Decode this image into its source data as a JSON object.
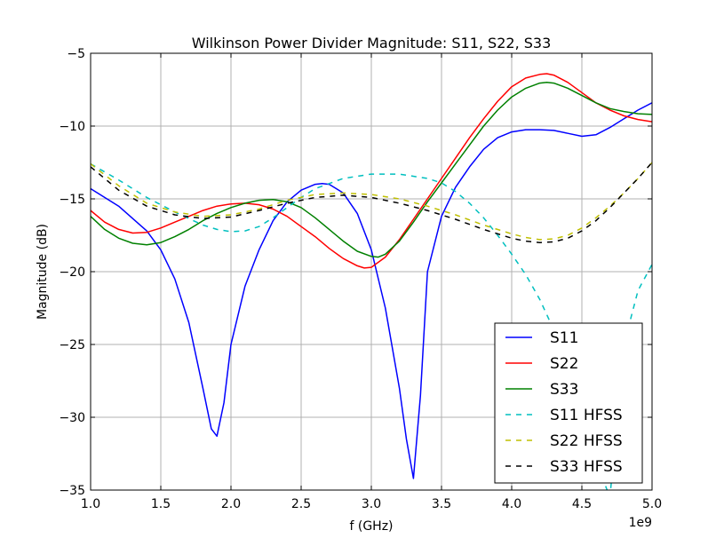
{
  "chart_data": {
    "type": "line",
    "title": "Wilkinson Power Divider Magnitude: S11, S22, S33",
    "xlabel": "f (GHz)",
    "ylabel": "Magnitude (dB)",
    "x_offset_label": "1e9",
    "xlim": [
      1.0,
      5.0
    ],
    "ylim": [
      -35,
      -5
    ],
    "x_ticks": [
      "1.0",
      "1.5",
      "2.0",
      "2.5",
      "3.0",
      "3.5",
      "4.0",
      "4.5",
      "5.0"
    ],
    "y_ticks": [
      "−35",
      "−30",
      "−25",
      "−20",
      "−15",
      "−10",
      "−5"
    ],
    "grid": true,
    "legend_position": "bottom-right",
    "series": [
      {
        "name": "S11",
        "color": "#0000ff",
        "style": "solid",
        "x": [
          1.0,
          1.2,
          1.4,
          1.5,
          1.6,
          1.7,
          1.8,
          1.86,
          1.9,
          1.95,
          2.0,
          2.1,
          2.2,
          2.3,
          2.4,
          2.5,
          2.6,
          2.65,
          2.7,
          2.8,
          2.9,
          3.0,
          3.1,
          3.2,
          3.25,
          3.3,
          3.35,
          3.4,
          3.5,
          3.6,
          3.7,
          3.8,
          3.9,
          4.0,
          4.1,
          4.2,
          4.3,
          4.4,
          4.5,
          4.6,
          4.7,
          4.8,
          4.9,
          5.0
        ],
        "y": [
          -14.3,
          -15.5,
          -17.2,
          -18.5,
          -20.5,
          -23.5,
          -28.0,
          -30.8,
          -31.3,
          -29.0,
          -25.0,
          -21.0,
          -18.5,
          -16.5,
          -15.2,
          -14.4,
          -14.0,
          -13.95,
          -14.0,
          -14.6,
          -16.0,
          -18.5,
          -22.5,
          -28.0,
          -31.5,
          -34.2,
          -28.5,
          -20.0,
          -16.2,
          -14.2,
          -12.8,
          -11.6,
          -10.8,
          -10.4,
          -10.25,
          -10.25,
          -10.3,
          -10.5,
          -10.7,
          -10.6,
          -10.1,
          -9.5,
          -8.9,
          -8.4
        ]
      },
      {
        "name": "S22",
        "color": "#ff0000",
        "style": "solid",
        "x": [
          1.0,
          1.1,
          1.2,
          1.3,
          1.4,
          1.5,
          1.6,
          1.7,
          1.8,
          1.9,
          2.0,
          2.1,
          2.2,
          2.3,
          2.4,
          2.5,
          2.6,
          2.7,
          2.8,
          2.9,
          2.95,
          3.0,
          3.1,
          3.2,
          3.3,
          3.4,
          3.5,
          3.6,
          3.7,
          3.8,
          3.9,
          4.0,
          4.1,
          4.2,
          4.25,
          4.3,
          4.4,
          4.5,
          4.6,
          4.7,
          4.8,
          4.9,
          5.0
        ],
        "y": [
          -15.8,
          -16.6,
          -17.1,
          -17.35,
          -17.3,
          -17.0,
          -16.6,
          -16.2,
          -15.8,
          -15.5,
          -15.35,
          -15.3,
          -15.4,
          -15.7,
          -16.2,
          -16.9,
          -17.6,
          -18.4,
          -19.1,
          -19.6,
          -19.75,
          -19.7,
          -19.0,
          -17.8,
          -16.4,
          -15.0,
          -13.6,
          -12.2,
          -10.8,
          -9.5,
          -8.3,
          -7.3,
          -6.7,
          -6.45,
          -6.4,
          -6.5,
          -7.0,
          -7.7,
          -8.4,
          -8.9,
          -9.3,
          -9.55,
          -9.7
        ]
      },
      {
        "name": "S33",
        "color": "#008000",
        "style": "solid",
        "x": [
          1.0,
          1.1,
          1.2,
          1.3,
          1.4,
          1.5,
          1.6,
          1.7,
          1.8,
          1.9,
          2.0,
          2.1,
          2.2,
          2.3,
          2.4,
          2.5,
          2.6,
          2.7,
          2.8,
          2.9,
          3.0,
          3.05,
          3.1,
          3.2,
          3.3,
          3.4,
          3.5,
          3.6,
          3.7,
          3.8,
          3.9,
          4.0,
          4.1,
          4.2,
          4.25,
          4.3,
          4.4,
          4.5,
          4.6,
          4.7,
          4.8,
          4.9,
          5.0
        ],
        "y": [
          -16.2,
          -17.1,
          -17.7,
          -18.05,
          -18.15,
          -18.0,
          -17.6,
          -17.1,
          -16.5,
          -16.0,
          -15.6,
          -15.3,
          -15.1,
          -15.05,
          -15.2,
          -15.6,
          -16.3,
          -17.1,
          -17.9,
          -18.6,
          -18.95,
          -19.0,
          -18.8,
          -17.9,
          -16.6,
          -15.2,
          -13.9,
          -12.6,
          -11.3,
          -10.0,
          -8.9,
          -8.0,
          -7.4,
          -7.05,
          -7.0,
          -7.05,
          -7.4,
          -7.9,
          -8.4,
          -8.8,
          -9.0,
          -9.15,
          -9.2
        ]
      },
      {
        "name": "S11 HFSS",
        "color": "#00bfbf",
        "style": "dashed",
        "x": [
          1.0,
          1.2,
          1.4,
          1.6,
          1.8,
          1.9,
          2.0,
          2.1,
          2.2,
          2.3,
          2.4,
          2.5,
          2.6,
          2.8,
          3.0,
          3.2,
          3.4,
          3.5,
          3.6,
          3.7,
          3.8,
          3.9,
          4.0,
          4.1,
          4.2,
          4.3,
          4.4,
          4.5,
          4.6,
          4.7,
          4.8,
          4.9,
          5.0
        ],
        "y": [
          -12.6,
          -13.7,
          -14.9,
          -15.9,
          -16.8,
          -17.1,
          -17.25,
          -17.2,
          -16.9,
          -16.3,
          -15.6,
          -14.9,
          -14.3,
          -13.6,
          -13.3,
          -13.3,
          -13.6,
          -13.9,
          -14.5,
          -15.3,
          -16.3,
          -17.5,
          -18.8,
          -20.2,
          -21.9,
          -24.0,
          -26.8,
          -30.0,
          -33.0,
          -35.5,
          -25.0,
          -21.3,
          -19.5
        ]
      },
      {
        "name": "S22 HFSS",
        "color": "#bfbf00",
        "style": "dashed",
        "x": [
          1.0,
          1.2,
          1.4,
          1.6,
          1.8,
          2.0,
          2.2,
          2.4,
          2.6,
          2.8,
          3.0,
          3.2,
          3.4,
          3.6,
          3.8,
          4.0,
          4.1,
          4.2,
          4.3,
          4.4,
          4.5,
          4.6,
          4.7,
          4.8,
          4.9,
          5.0
        ],
        "y": [
          -12.6,
          -14.1,
          -15.3,
          -15.9,
          -16.2,
          -16.1,
          -15.7,
          -15.1,
          -14.7,
          -14.6,
          -14.7,
          -15.0,
          -15.5,
          -16.1,
          -16.8,
          -17.4,
          -17.65,
          -17.8,
          -17.75,
          -17.5,
          -17.0,
          -16.3,
          -15.5,
          -14.6,
          -13.6,
          -12.5
        ]
      },
      {
        "name": "S33 HFSS",
        "color": "#000000",
        "style": "dashed",
        "x": [
          1.0,
          1.2,
          1.4,
          1.6,
          1.8,
          2.0,
          2.2,
          2.4,
          2.6,
          2.8,
          3.0,
          3.2,
          3.4,
          3.6,
          3.8,
          4.0,
          4.1,
          4.2,
          4.3,
          4.4,
          4.5,
          4.6,
          4.7,
          4.8,
          4.9,
          5.0
        ],
        "y": [
          -12.8,
          -14.4,
          -15.5,
          -16.1,
          -16.35,
          -16.25,
          -15.8,
          -15.3,
          -14.9,
          -14.75,
          -14.9,
          -15.3,
          -15.8,
          -16.4,
          -17.1,
          -17.7,
          -17.9,
          -18.0,
          -17.95,
          -17.7,
          -17.2,
          -16.5,
          -15.6,
          -14.6,
          -13.6,
          -12.5
        ]
      }
    ]
  }
}
